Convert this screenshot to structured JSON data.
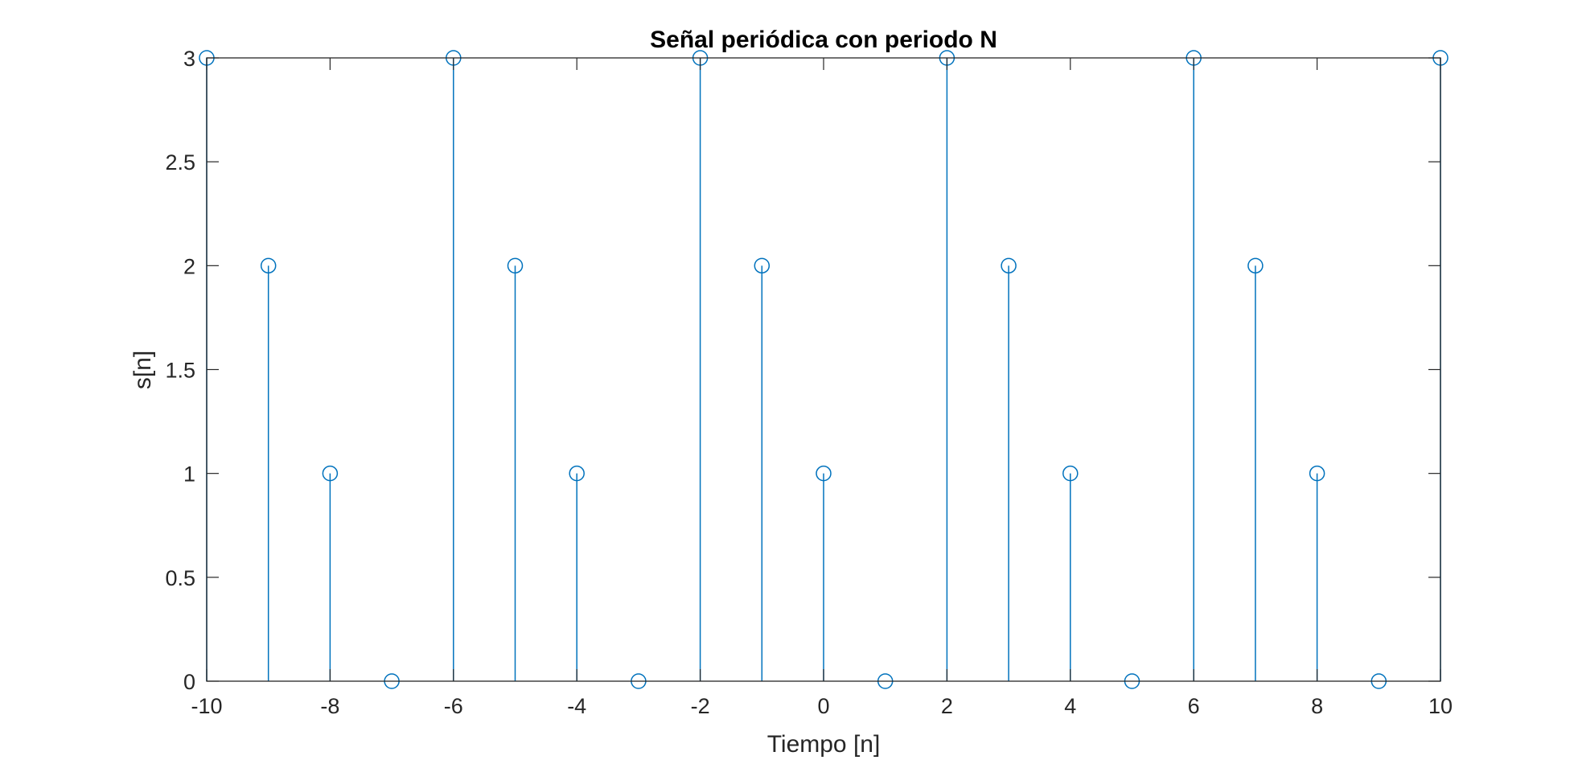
{
  "chart_data": {
    "type": "stem",
    "title": "Señal periódica con periodo N",
    "xlabel": "Tiempo [n]",
    "ylabel": "s[n]",
    "xlim": [
      -10,
      10
    ],
    "ylim": [
      0,
      3
    ],
    "grid": false,
    "x": [
      -10,
      -9,
      -8,
      -7,
      -6,
      -5,
      -4,
      -3,
      -2,
      -1,
      0,
      1,
      2,
      3,
      4,
      5,
      6,
      7,
      8,
      9,
      10
    ],
    "values": [
      3,
      2,
      1,
      0,
      3,
      2,
      1,
      0,
      3,
      2,
      1,
      0,
      3,
      2,
      1,
      0,
      3,
      2,
      1,
      0,
      3
    ],
    "xticks": [
      "-10",
      "-8",
      "-6",
      "-4",
      "-2",
      "0",
      "2",
      "4",
      "6",
      "8",
      "10"
    ],
    "yticks": [
      "0",
      "0.5",
      "1",
      "1.5",
      "2",
      "2.5",
      "3"
    ],
    "colors": {
      "series": "#0072BD",
      "axes": "#262626"
    }
  }
}
